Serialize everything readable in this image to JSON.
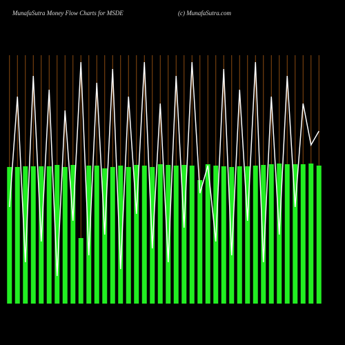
{
  "chart_data": {
    "type": "bar",
    "title": "MunafaSutra  Money Flow  Charts for MSDE",
    "subtitle": "(c) MunafaSutra.com",
    "categories": [
      null,
      null,
      null,
      null,
      null,
      null,
      null,
      null,
      null,
      null,
      null,
      null,
      null,
      null,
      null,
      null,
      null,
      null,
      null,
      null,
      null,
      null,
      null,
      null,
      null,
      null,
      null,
      null,
      null,
      null,
      null,
      null,
      null,
      null,
      null,
      null,
      null,
      null,
      null,
      null
    ],
    "ylim": [
      0,
      360
    ],
    "grid": true,
    "grid_color": "#8a4a10",
    "series": [
      {
        "color": "#22ee22",
        "values": [
          198,
          198,
          199,
          199,
          199,
          199,
          201,
          198,
          201,
          95,
          200,
          200,
          196,
          198,
          200,
          198,
          201,
          200,
          198,
          202,
          201,
          200,
          201,
          200,
          179,
          202,
          200,
          199,
          198,
          199,
          199,
          200,
          201,
          202,
          203,
          202,
          202,
          202,
          203,
          200
        ]
      },
      {
        "color": "#ffffff",
        "values": [
          140,
          300,
          60,
          330,
          90,
          310,
          40,
          280,
          120,
          350,
          70,
          320,
          100,
          340,
          50,
          300,
          130,
          350,
          80,
          290,
          60,
          330,
          110,
          350,
          160,
          200,
          90,
          340,
          70,
          310,
          120,
          350,
          60,
          300,
          100,
          330,
          140,
          290,
          230,
          250
        ]
      }
    ]
  }
}
